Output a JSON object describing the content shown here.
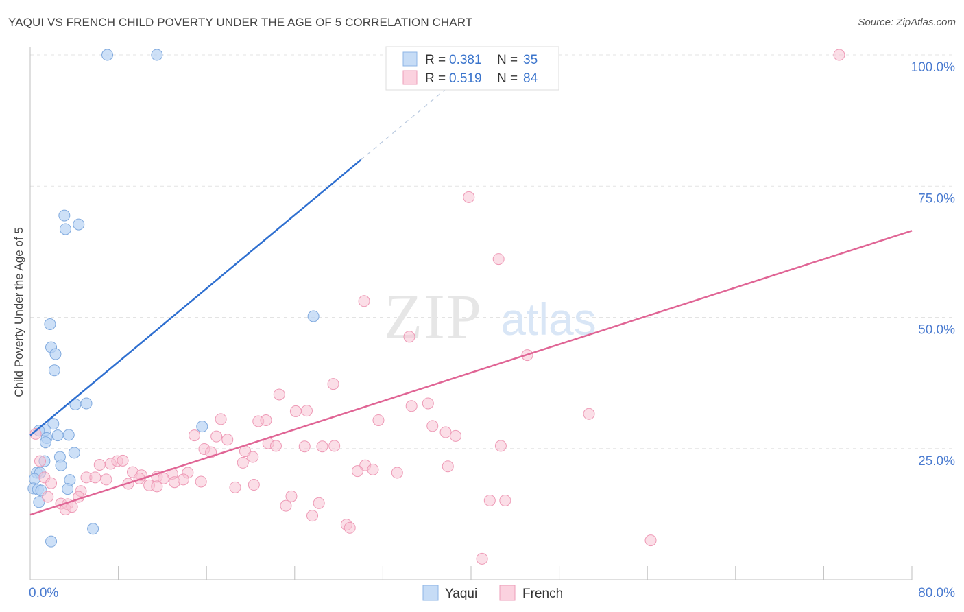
{
  "header": {
    "title": "YAQUI VS FRENCH CHILD POVERTY UNDER THE AGE OF 5 CORRELATION CHART",
    "source": "Source: ZipAtlas.com"
  },
  "watermark": {
    "zip": "ZIP",
    "atlas": "atlas"
  },
  "colors": {
    "yaqui": "#9ec5f0",
    "yaqui_line": "#2e6fd0",
    "french": "#f5b5c9",
    "french_line": "#e06595",
    "tick": "#4a7bd0"
  },
  "chart_data": {
    "type": "scatter",
    "title": "YAQUI VS FRENCH CHILD POVERTY UNDER THE AGE OF 5 CORRELATION CHART",
    "xlabel": "",
    "ylabel": "Child Poverty Under the Age of 5",
    "xlim": [
      0,
      80
    ],
    "ylim": [
      0,
      100
    ],
    "x_tick_labels": [
      "0.0%",
      "80.0%"
    ],
    "y_tick_labels": [
      "100.0%",
      "75.0%",
      "50.0%",
      "25.0%"
    ],
    "y_tick_values": [
      100,
      75,
      50,
      25
    ],
    "grid": true,
    "legend_placement": "top-center",
    "series": [
      {
        "name": "Yaqui",
        "r_label": "R = ",
        "r_value": "0.381",
        "n_label": "N = ",
        "n_value": "35",
        "trend": {
          "x0": 0,
          "y0": 27.5,
          "x1": 30,
          "y1": 80,
          "dash_to_x": 40.5
        },
        "points": [
          [
            7,
            100
          ],
          [
            11.5,
            100
          ],
          [
            3.1,
            69.4
          ],
          [
            3.2,
            66.8
          ],
          [
            4.4,
            67.7
          ],
          [
            1.8,
            48.7
          ],
          [
            25.7,
            50.2
          ],
          [
            1.9,
            44.3
          ],
          [
            2.3,
            43
          ],
          [
            2.2,
            39.9
          ],
          [
            4.1,
            33.4
          ],
          [
            5.1,
            33.6
          ],
          [
            2.1,
            29.7
          ],
          [
            1.4,
            28.5
          ],
          [
            15.6,
            29.2
          ],
          [
            0.8,
            28.4
          ],
          [
            1.5,
            27
          ],
          [
            2.5,
            27.5
          ],
          [
            3.5,
            27.6
          ],
          [
            1.4,
            26.2
          ],
          [
            2.7,
            23.4
          ],
          [
            4,
            24.2
          ],
          [
            1.3,
            22.6
          ],
          [
            2.8,
            21.8
          ],
          [
            0.6,
            20.4
          ],
          [
            0.9,
            20.4
          ],
          [
            0.4,
            19.2
          ],
          [
            3.6,
            19
          ],
          [
            0.3,
            17.4
          ],
          [
            0.7,
            17.2
          ],
          [
            1,
            17
          ],
          [
            3.4,
            17.3
          ],
          [
            0.8,
            14.8
          ],
          [
            5.7,
            9.7
          ],
          [
            1.9,
            7.3
          ]
        ]
      },
      {
        "name": "French",
        "r_label": "R = ",
        "r_value": "0.519",
        "n_label": "N = ",
        "n_value": "84",
        "trend": {
          "x0": 0,
          "y0": 12.4,
          "x1": 80,
          "y1": 66.5
        },
        "points": [
          [
            38.7,
            100
          ],
          [
            46.1,
            100
          ],
          [
            73.4,
            100
          ],
          [
            39.8,
            72.9
          ],
          [
            42.5,
            61.1
          ],
          [
            30.3,
            53.1
          ],
          [
            34.4,
            46.3
          ],
          [
            45.1,
            42.8
          ],
          [
            27.5,
            37.3
          ],
          [
            22.6,
            35.3
          ],
          [
            34.6,
            33.1
          ],
          [
            36.1,
            33.6
          ],
          [
            50.7,
            31.6
          ],
          [
            24.1,
            32.1
          ],
          [
            25.1,
            32.2
          ],
          [
            17.3,
            30.6
          ],
          [
            20.7,
            30.2
          ],
          [
            21.4,
            30.4
          ],
          [
            31.6,
            30.4
          ],
          [
            36.5,
            29.3
          ],
          [
            37.7,
            28.1
          ],
          [
            38.6,
            27.4
          ],
          [
            14.9,
            27.5
          ],
          [
            16.9,
            27.3
          ],
          [
            17.9,
            26.7
          ],
          [
            21.6,
            26
          ],
          [
            22.3,
            25.5
          ],
          [
            24.9,
            25.4
          ],
          [
            26.5,
            25.4
          ],
          [
            27.6,
            25.5
          ],
          [
            42.7,
            25.5
          ],
          [
            15.8,
            24.9
          ],
          [
            16.4,
            24.3
          ],
          [
            19.5,
            24.5
          ],
          [
            20.2,
            23.4
          ],
          [
            19.3,
            22.3
          ],
          [
            6.3,
            21.9
          ],
          [
            7.3,
            22.1
          ],
          [
            7.9,
            22.6
          ],
          [
            8.4,
            22.7
          ],
          [
            30.4,
            21.8
          ],
          [
            31.1,
            21
          ],
          [
            29.7,
            20.7
          ],
          [
            33.3,
            20.4
          ],
          [
            37.9,
            21.6
          ],
          [
            9.3,
            20.5
          ],
          [
            10.1,
            19.9
          ],
          [
            11.5,
            19.6
          ],
          [
            12.9,
            20.2
          ],
          [
            14.3,
            20.4
          ],
          [
            5.1,
            19.5
          ],
          [
            5.9,
            19.5
          ],
          [
            6.9,
            19.1
          ],
          [
            8.9,
            18.3
          ],
          [
            9.9,
            19.3
          ],
          [
            12.1,
            19.3
          ],
          [
            13.1,
            18.6
          ],
          [
            13.9,
            19.1
          ],
          [
            15.5,
            18.7
          ],
          [
            10.8,
            18
          ],
          [
            11.5,
            17.8
          ],
          [
            18.6,
            17.6
          ],
          [
            20.3,
            18.1
          ],
          [
            4.6,
            16.9
          ],
          [
            4.4,
            15.8
          ],
          [
            23.7,
            15.9
          ],
          [
            26.2,
            14.6
          ],
          [
            41.7,
            15.1
          ],
          [
            43.1,
            15.1
          ],
          [
            23.2,
            14.1
          ],
          [
            0.5,
            27.8
          ],
          [
            0.9,
            22.6
          ],
          [
            1.3,
            19.5
          ],
          [
            1.9,
            18.4
          ],
          [
            2.8,
            14.5
          ],
          [
            3.4,
            14.4
          ],
          [
            1.6,
            15.8
          ],
          [
            3.2,
            13.4
          ],
          [
            3.8,
            13.9
          ],
          [
            25.6,
            12.2
          ],
          [
            28.7,
            10.5
          ],
          [
            29,
            9.9
          ],
          [
            56.3,
            7.5
          ],
          [
            41,
            4
          ]
        ]
      }
    ]
  }
}
